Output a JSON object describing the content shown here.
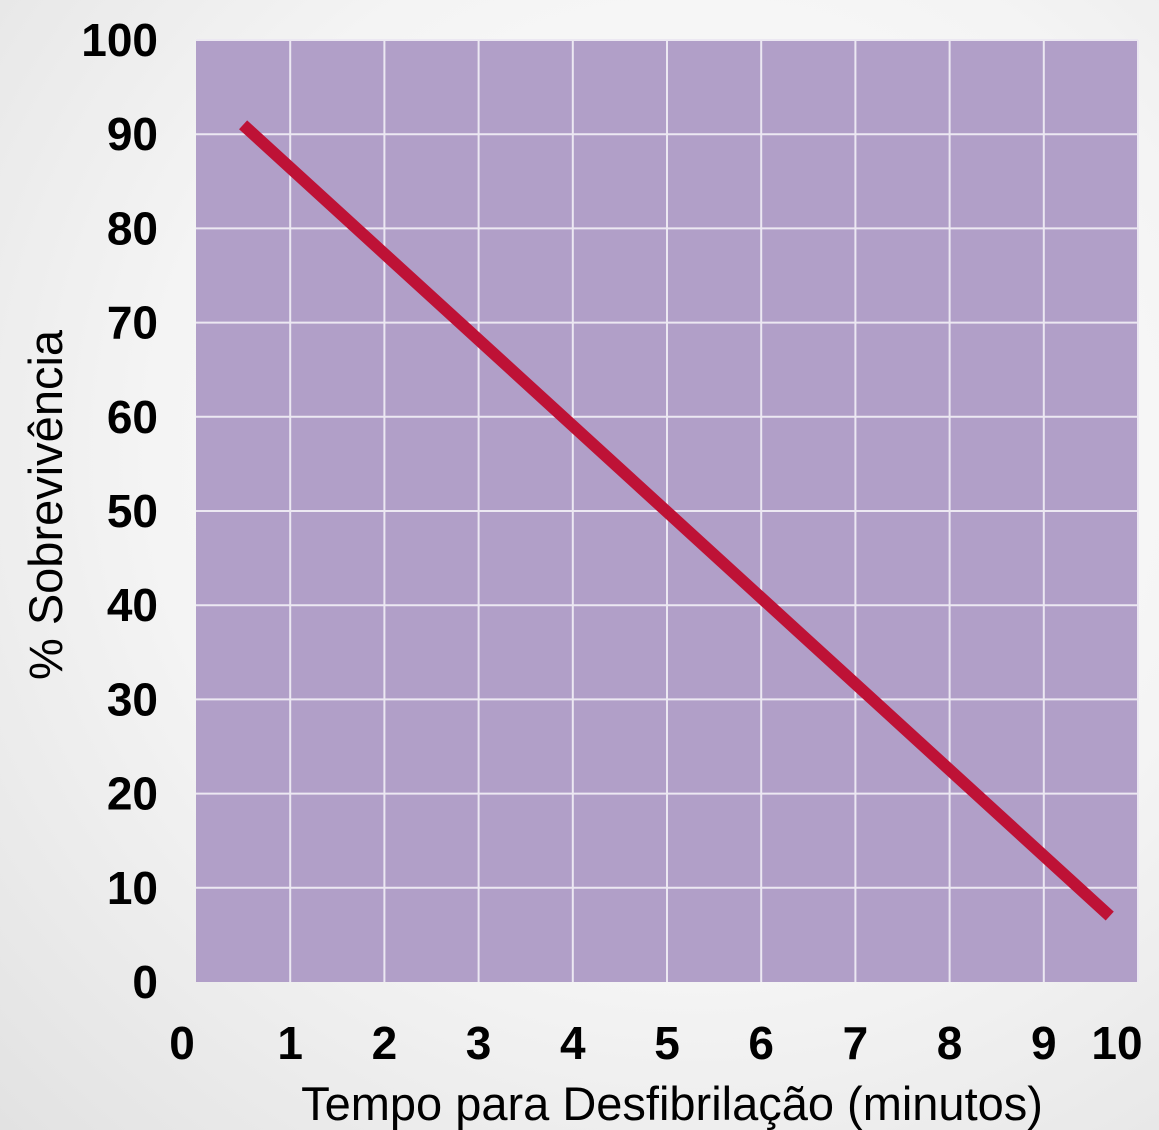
{
  "chart_data": {
    "type": "line",
    "title": "",
    "xlabel": "Tempo para Desfibrilação (minutos)",
    "ylabel": "% Sobrevivência",
    "xlim": [
      0,
      10
    ],
    "ylim": [
      0,
      100
    ],
    "x_ticks": [
      0,
      1,
      2,
      3,
      4,
      5,
      6,
      7,
      8,
      9,
      10
    ],
    "y_ticks": [
      0,
      10,
      20,
      30,
      40,
      50,
      60,
      70,
      80,
      90,
      100
    ],
    "grid": true,
    "series": [
      {
        "x": [
          0.5,
          9.7
        ],
        "y": [
          91,
          7
        ]
      }
    ],
    "colors": {
      "plot_background": "#b19fc8",
      "grid": "#ece8f2",
      "line": "#be1236"
    }
  }
}
